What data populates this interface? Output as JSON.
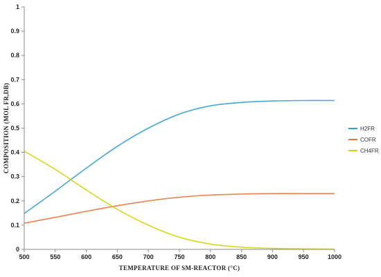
{
  "chart_data": {
    "type": "line",
    "title": "",
    "xlabel": "TEMPERATURE OF SM-REACTOR (°C)",
    "ylabel": "COMPOSITION (MOL FR,DB)",
    "xlim": [
      500,
      1000
    ],
    "ylim": [
      0,
      1
    ],
    "x_ticks": [
      "500",
      "550",
      "600",
      "650",
      "700",
      "750",
      "800",
      "850",
      "900",
      "950",
      "1000"
    ],
    "y_ticks": [
      "0",
      "0.1",
      "0.2",
      "0.3",
      "0.4",
      "0.5",
      "0.6",
      "0.7",
      "0.8",
      "0.9",
      "1"
    ],
    "grid": false,
    "legend_position": "right",
    "x": [
      500,
      550,
      600,
      650,
      700,
      750,
      800,
      850,
      900,
      950,
      1000
    ],
    "series": [
      {
        "name": "H2FR",
        "color": "#2e9fd0",
        "values": [
          0.148,
          0.24,
          0.335,
          0.425,
          0.5,
          0.558,
          0.592,
          0.606,
          0.612,
          0.614,
          0.614
        ]
      },
      {
        "name": "COFR",
        "color": "#e8743b",
        "values": [
          0.108,
          0.132,
          0.157,
          0.18,
          0.2,
          0.215,
          0.224,
          0.228,
          0.23,
          0.23,
          0.23
        ]
      },
      {
        "name": "CH4FR",
        "color": "#d4d400",
        "values": [
          0.405,
          0.33,
          0.245,
          0.165,
          0.1,
          0.05,
          0.022,
          0.009,
          0.004,
          0.002,
          0.001
        ]
      }
    ]
  }
}
